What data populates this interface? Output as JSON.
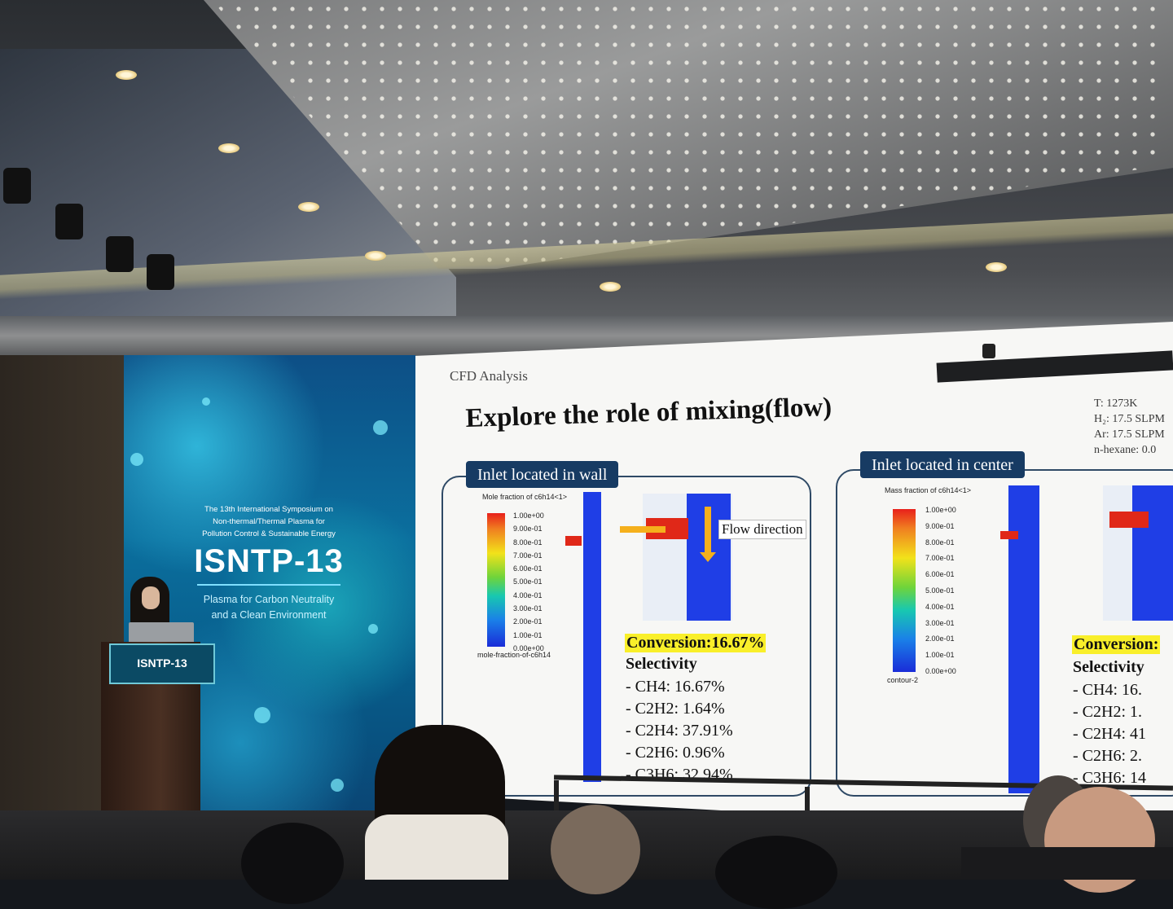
{
  "event_display": {
    "intro_lines": [
      "The 13th International Symposium on",
      "Non-thermal/Thermal Plasma for",
      "Pollution Control & Sustainable Energy"
    ],
    "name": "ISNTP-13",
    "tagline_lines": [
      "Plasma for Carbon Neutrality",
      "and a Clean Environment"
    ]
  },
  "podium_sign": {
    "name": "ISNTP-13"
  },
  "slide": {
    "section": "CFD Analysis",
    "title": "Explore the role of mixing(flow)",
    "params": [
      "T: 1273K",
      "H₂: 17.5 SLPM",
      "Ar: 17.5 SLPM",
      "n-hexane: 0.0"
    ],
    "left_panel": {
      "tag": "Inlet located in wall",
      "colorbar_title": "Mole fraction of c6h14<1>",
      "colorbar_ticks": [
        "1.00e+00",
        "9.00e-01",
        "8.00e-01",
        "7.00e-01",
        "6.00e-01",
        "5.00e-01",
        "4.00e-01",
        "3.00e-01",
        "2.00e-01",
        "1.00e-01",
        "0.00e+00"
      ],
      "colorbar_footer": "mole-fraction-of-c6h14",
      "flow_label": "Flow direction",
      "conversion": "Conversion:16.67%",
      "selectivity_label": "Selectivity",
      "selectivity": [
        "-   CH4: 16.67%",
        "-   C2H2: 1.64%",
        "-   C2H4: 37.91%",
        "-   C2H6: 0.96%",
        "-   C3H6: 32.94%"
      ]
    },
    "right_panel": {
      "tag": "Inlet located in center",
      "colorbar_title": "Mass fraction of c6h14<1>",
      "colorbar_ticks": [
        "1.00e+00",
        "9.00e-01",
        "8.00e-01",
        "7.00e-01",
        "6.00e-01",
        "5.00e-01",
        "4.00e-01",
        "3.00e-01",
        "2.00e-01",
        "1.00e-01",
        "0.00e+00"
      ],
      "colorbar_footer": "contour-2",
      "conversion": "Conversion:",
      "selectivity_label": "Selectivity",
      "selectivity": [
        "-   CH4: 16.",
        "-   C2H2: 1.",
        "-   C2H4: 41",
        "-   C2H6: 2.",
        "-   C3H6: 14"
      ]
    }
  },
  "colors": {
    "panel_tag": "#173b63",
    "highlight": "#f9ef2a",
    "led_wall": "#0b6f9e",
    "podium": "#4a3023"
  }
}
